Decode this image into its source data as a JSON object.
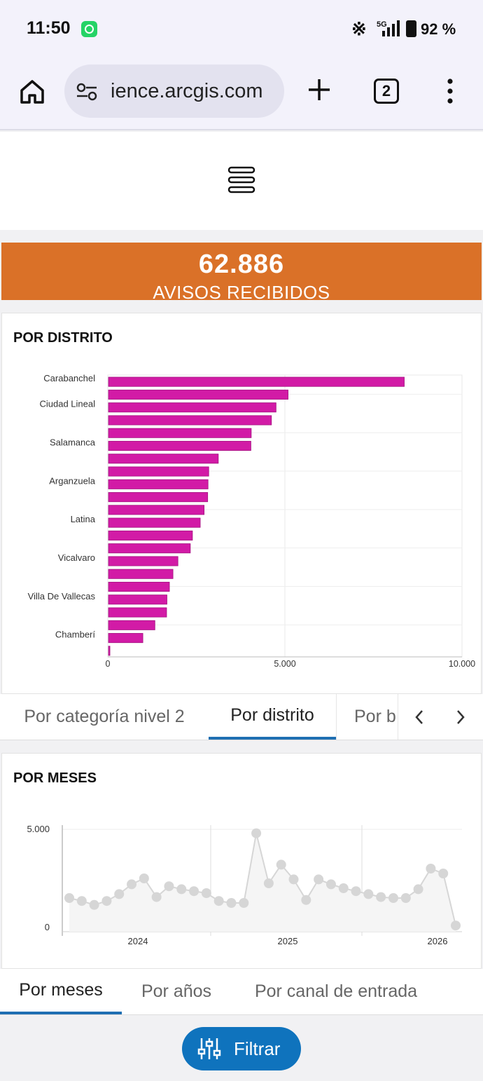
{
  "status": {
    "time": "11:50",
    "network": "5G",
    "battery": "92 %"
  },
  "browser": {
    "url": "ience.arcgis.com",
    "tab_count": "2"
  },
  "kpi": {
    "value": "62.886",
    "label": "AVISOS RECIBIDOS",
    "color": "#da7128"
  },
  "district_card": {
    "title": "POR DISTRITO",
    "chart_data": {
      "type": "bar",
      "orientation": "horizontal",
      "color": "#d21ba6",
      "xlim": [
        0,
        10000
      ],
      "x_ticks": [
        "0",
        "5.000",
        "10.000"
      ],
      "categories": [
        "Carabanchel",
        "",
        "Ciudad Lineal",
        "",
        "",
        "Salamanca",
        "",
        "",
        "Arganzuela",
        "",
        "",
        "Latina",
        "",
        "",
        "Vicalvaro",
        "",
        "",
        "Villa De Vallecas",
        "",
        "",
        "Chamberí",
        ""
      ],
      "values": [
        8350,
        5070,
        4730,
        4600,
        4030,
        4020,
        3100,
        2830,
        2810,
        2800,
        2700,
        2590,
        2370,
        2310,
        1960,
        1820,
        1720,
        1650,
        1640,
        1310,
        970,
        40
      ]
    }
  },
  "tabs_1": {
    "items": [
      "Por categoría nivel 2",
      "Por distrito",
      "Por b"
    ],
    "active": 1
  },
  "months_card": {
    "title": "POR MESES",
    "chart_data": {
      "type": "line",
      "color": "#d6d6d6",
      "ylim": [
        0,
        5000
      ],
      "y_ticks": [
        "5.000",
        "0"
      ],
      "x_labels": [
        "2024",
        "2025",
        "2026"
      ],
      "values": [
        1500,
        1350,
        1150,
        1350,
        1700,
        2200,
        2500,
        1550,
        2100,
        1950,
        1850,
        1750,
        1350,
        1250,
        1250,
        4800,
        2250,
        3200,
        2450,
        1400,
        2450,
        2200,
        2000,
        1850,
        1700,
        1550,
        1500,
        1500,
        1950,
        3000,
        2750,
        100
      ]
    }
  },
  "tabs_2": {
    "items": [
      "Por meses",
      "Por años",
      "Por canal de entrada"
    ],
    "active": 0
  },
  "filter_button": {
    "label": "Filtrar"
  }
}
